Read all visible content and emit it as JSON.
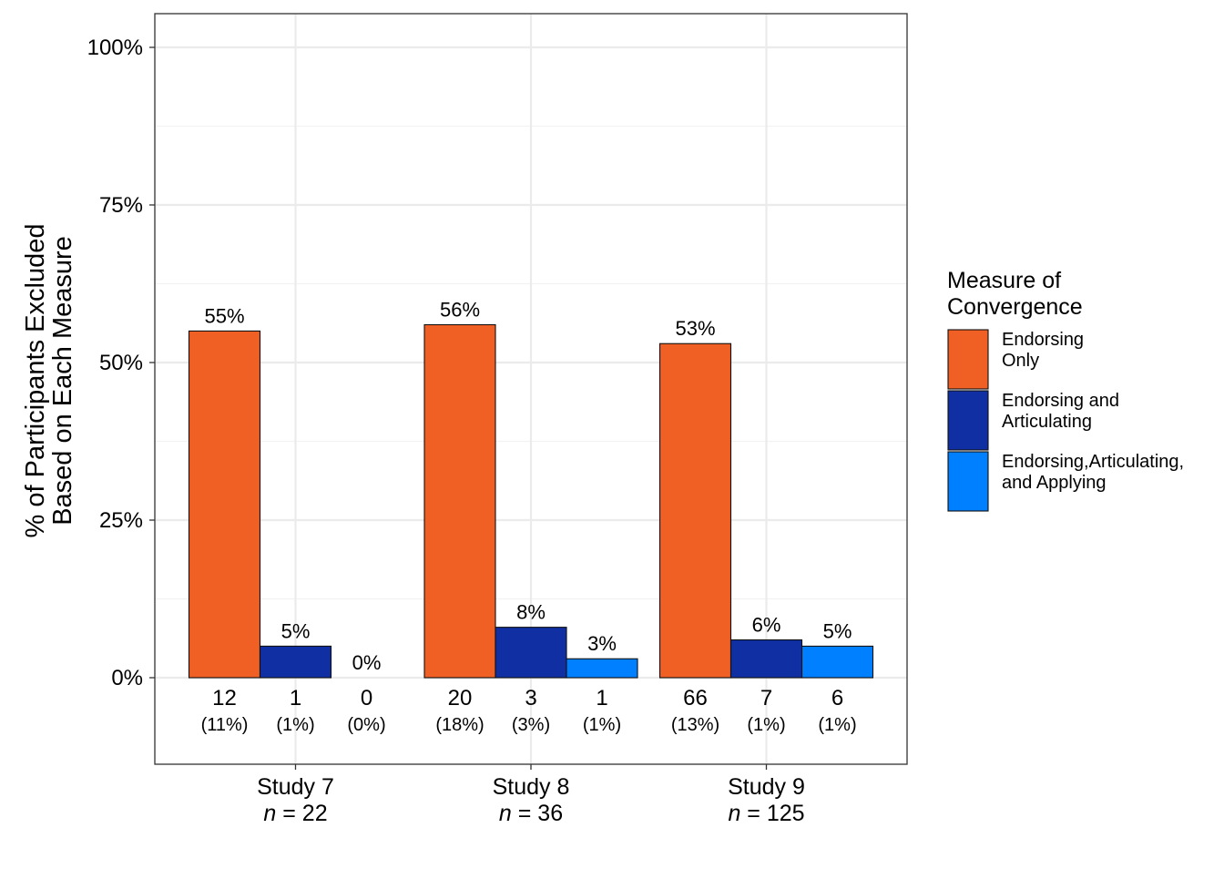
{
  "chart_data": {
    "type": "bar",
    "ylabel_lines": [
      "% of Participants Excluded",
      "Based on Each Measure"
    ],
    "ylim": [
      0,
      100
    ],
    "yticks": [
      0,
      25,
      50,
      75,
      100
    ],
    "ytick_labels": [
      "0%",
      "25%",
      "50%",
      "75%",
      "100%"
    ],
    "grid": true,
    "legend": {
      "placement": "right",
      "title_lines": [
        "Measure of",
        "Convergence"
      ]
    },
    "categories": [
      {
        "name": "Study 7",
        "n_prefix": "n",
        "n_eq": " = 22"
      },
      {
        "name": "Study 8",
        "n_prefix": "n",
        "n_eq": " = 36"
      },
      {
        "name": "Study 9",
        "n_prefix": "n",
        "n_eq": " = 125"
      }
    ],
    "series": [
      {
        "name_lines": [
          "Endorsing",
          "Only"
        ],
        "color": "#F05F24",
        "values": [
          55,
          56,
          53
        ],
        "value_labels": [
          "55%",
          "56%",
          "53%"
        ],
        "counts": [
          "12",
          "20",
          "66"
        ],
        "count_pcts": [
          "(11%)",
          "(18%)",
          "(13%)"
        ]
      },
      {
        "name_lines": [
          "Endorsing and",
          "Articulating"
        ],
        "color": "#0F2FA3",
        "values": [
          5,
          8,
          6
        ],
        "value_labels": [
          "5%",
          "8%",
          "6%"
        ],
        "counts": [
          "1",
          "3",
          "7"
        ],
        "count_pcts": [
          "(1%)",
          "(3%)",
          "(1%)"
        ]
      },
      {
        "name_lines": [
          "Endorsing,Articulating,",
          "and Applying"
        ],
        "color": "#0080FF",
        "values": [
          0,
          3,
          5
        ],
        "value_labels": [
          "0%",
          "3%",
          "5%"
        ],
        "counts": [
          "0",
          "1",
          "6"
        ],
        "count_pcts": [
          "(0%)",
          "(1%)",
          "(1%)"
        ]
      }
    ]
  }
}
